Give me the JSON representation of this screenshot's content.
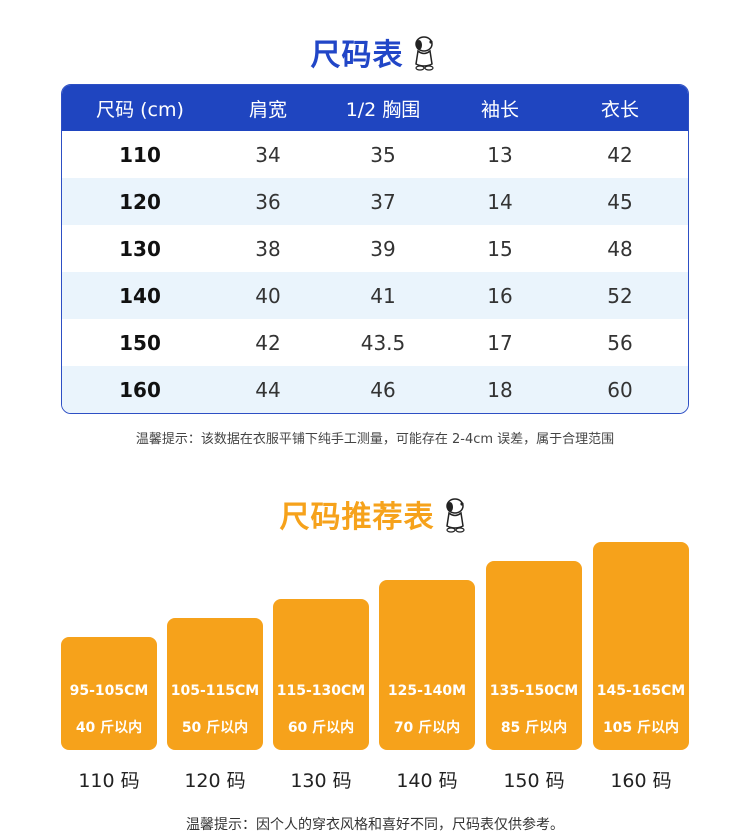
{
  "size_table": {
    "title": "尺码表",
    "headers": [
      "尺码 (cm)",
      "肩宽",
      "1/2 胸围",
      "袖长",
      "衣长"
    ],
    "rows": [
      [
        "110",
        "34",
        "35",
        "13",
        "42"
      ],
      [
        "120",
        "36",
        "37",
        "14",
        "45"
      ],
      [
        "130",
        "38",
        "39",
        "15",
        "48"
      ],
      [
        "140",
        "40",
        "41",
        "16",
        "52"
      ],
      [
        "150",
        "42",
        "43.5",
        "17",
        "56"
      ],
      [
        "160",
        "44",
        "46",
        "18",
        "60"
      ]
    ],
    "note": "温馨提示：该数据在衣服平铺下纯手工测量，可能存在 2-4cm 误差，属于合理范围"
  },
  "recommend": {
    "title": "尺码推荐表",
    "items": [
      {
        "height": "95-105CM",
        "weight": "40 斤以内",
        "size": "110 码"
      },
      {
        "height": "105-115CM",
        "weight": "50 斤以内",
        "size": "120 码"
      },
      {
        "height": "115-130CM",
        "weight": "60 斤以内",
        "size": "130 码"
      },
      {
        "height": "125-140M",
        "weight": "70 斤以内",
        "size": "140 码"
      },
      {
        "height": "135-150CM",
        "weight": "85 斤以内",
        "size": "150 码"
      },
      {
        "height": "145-165CM",
        "weight": "105 斤以内",
        "size": "160 码"
      }
    ],
    "note": "温馨提示：因个人的穿衣风格和喜好不同，尺码表仅供参考。"
  },
  "colors": {
    "blue": "#1f45c0",
    "orange": "#f6a21b",
    "row_alt": "#eaf4fc"
  },
  "icons": [
    "snoopy-icon"
  ]
}
